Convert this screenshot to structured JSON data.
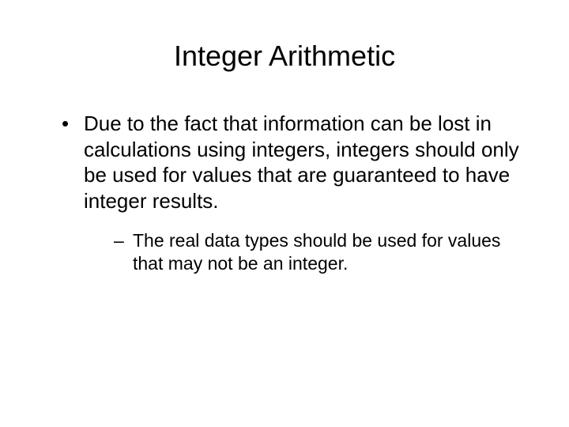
{
  "slide": {
    "title": "Integer Arithmetic",
    "bullets": [
      {
        "text": "Due to the fact that information can be lost in calculations using integers, integers should only be used for values that are guaranteed to have integer results.",
        "sub_bullets": [
          {
            "text": "The real data types should be used for values that may not be an integer."
          }
        ]
      }
    ]
  },
  "style": {
    "background_color": "#ffffff",
    "text_color": "#000000",
    "title_fontsize": 36,
    "body_fontsize": 26,
    "sub_fontsize": 23,
    "font_family": "Arial"
  }
}
